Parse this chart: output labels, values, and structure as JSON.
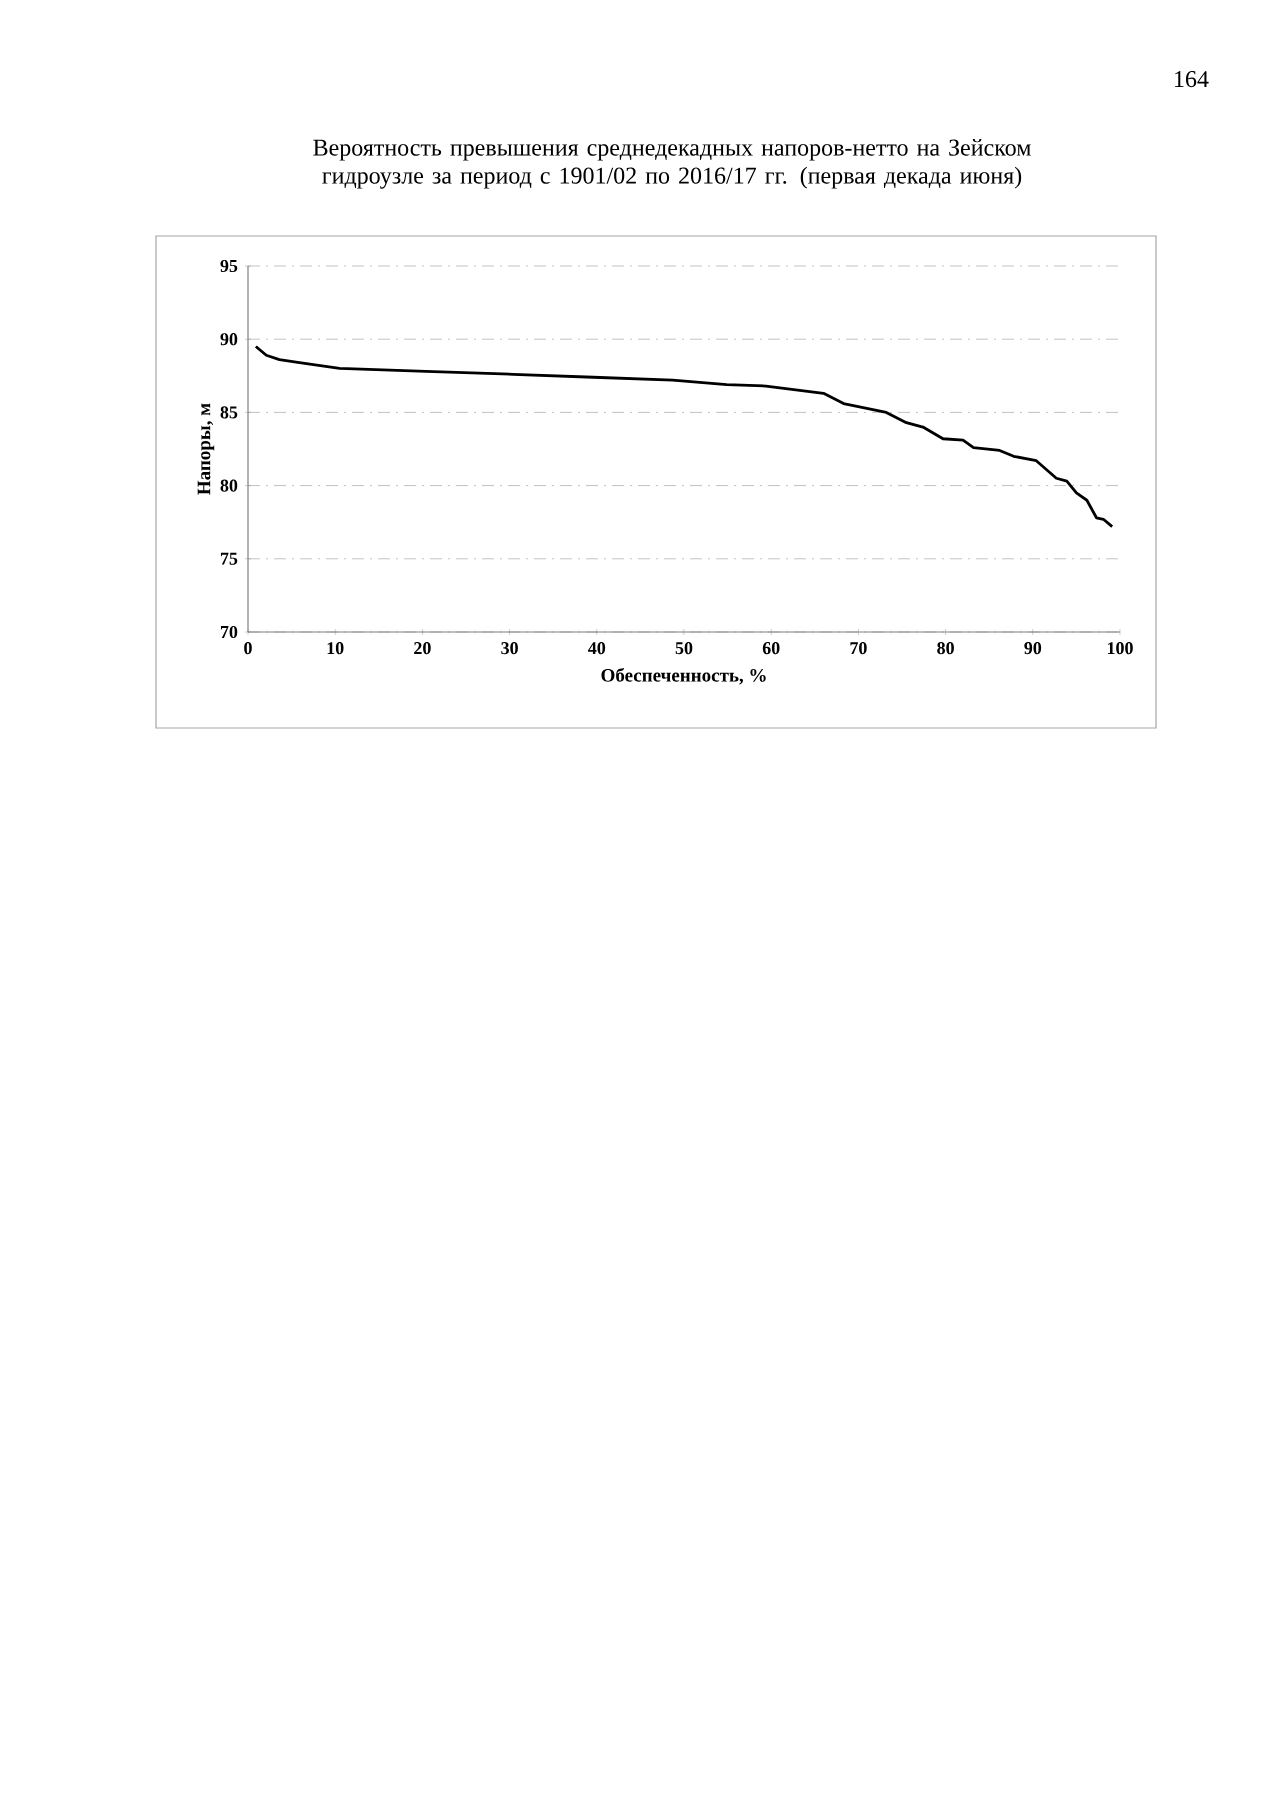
{
  "chart_data": {
    "type": "line",
    "title": "Вероятность превышения среднедекадных напоров-нетто на Зейском гидроузле за период с 1901/02 по 2016/17 гг. (первая декада июня)",
    "xlabel": "Обеспеченность, %",
    "ylabel": "Напоры, м",
    "annotations": [
      "164"
    ],
    "x": [
      0.9,
      2.1,
      3.6,
      5.9,
      10.5,
      20.4,
      30.4,
      39.6,
      48.7,
      54.9,
      59.4,
      66.0,
      68.3,
      73.2,
      75.5,
      77.4,
      79.7,
      82.0,
      83.2,
      86.2,
      87.8,
      90.4,
      92.7,
      93.9,
      95.0,
      96.2,
      97.3,
      98.1,
      99.1
    ],
    "series": [
      {
        "color": "#000000",
        "values": [
          89.5,
          88.9,
          88.6,
          88.4,
          88.0,
          87.8,
          87.6,
          87.4,
          87.2,
          86.9,
          86.8,
          86.3,
          85.6,
          85.0,
          84.3,
          84.0,
          83.2,
          83.1,
          82.6,
          82.4,
          82.0,
          81.7,
          80.5,
          80.3,
          79.5,
          79.0,
          77.8,
          77.7,
          77.2
        ]
      }
    ],
    "xlim": [
      0,
      100
    ],
    "xticks": [
      0,
      10,
      20,
      30,
      40,
      50,
      60,
      70,
      80,
      90,
      100
    ],
    "ylim": [
      70,
      95
    ],
    "yticks": [
      70,
      75,
      80,
      85,
      90,
      95
    ],
    "grid": "y",
    "marker": "none",
    "line_style": "solid"
  }
}
